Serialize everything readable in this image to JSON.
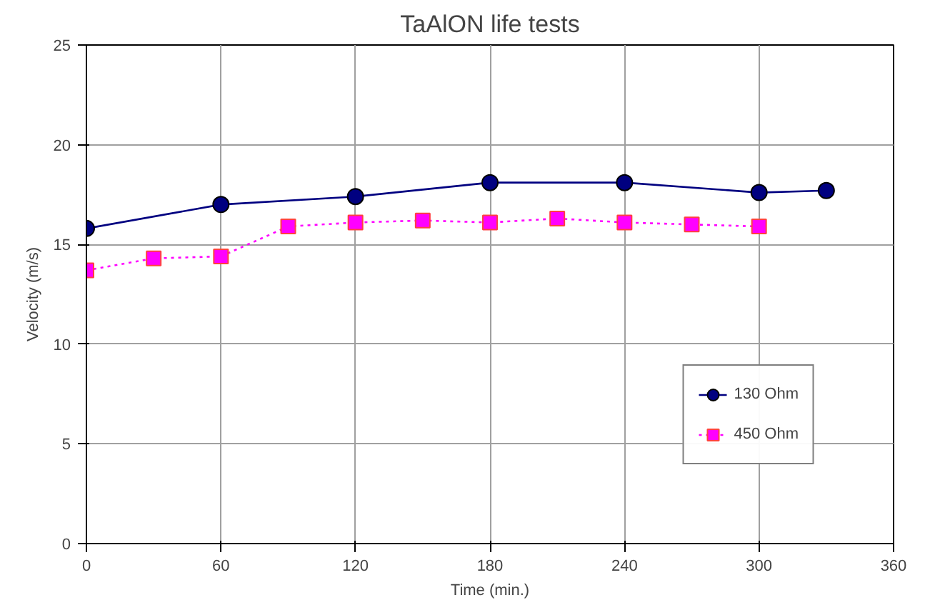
{
  "chart_data": {
    "type": "line",
    "title": "TaAlON life tests",
    "xlabel": "Time (min.)",
    "ylabel": "Velocity (m/s)",
    "xlim": [
      0,
      360
    ],
    "xticks": [
      0,
      60,
      120,
      180,
      240,
      300,
      360
    ],
    "ylim": [
      0,
      25
    ],
    "yticks": [
      0,
      5,
      10,
      15,
      20,
      25
    ],
    "grid": true,
    "legend": "bottom right",
    "series": [
      {
        "name": "130 Ohm",
        "color": "#000080",
        "marker": "circle",
        "line_style": "solid",
        "x": [
          0,
          60,
          120,
          180,
          240,
          300,
          330
        ],
        "values": [
          15.8,
          17.0,
          17.4,
          18.1,
          18.1,
          17.6,
          17.7
        ]
      },
      {
        "name": "450 Ohm",
        "color": "#ff00ff",
        "marker": "square",
        "line_style": "dotted",
        "x": [
          0,
          30,
          60,
          90,
          120,
          150,
          180,
          210,
          240,
          270,
          300
        ],
        "values": [
          13.7,
          14.3,
          14.4,
          15.9,
          16.1,
          16.2,
          16.1,
          16.3,
          16.1,
          16.0,
          15.9
        ]
      }
    ]
  }
}
